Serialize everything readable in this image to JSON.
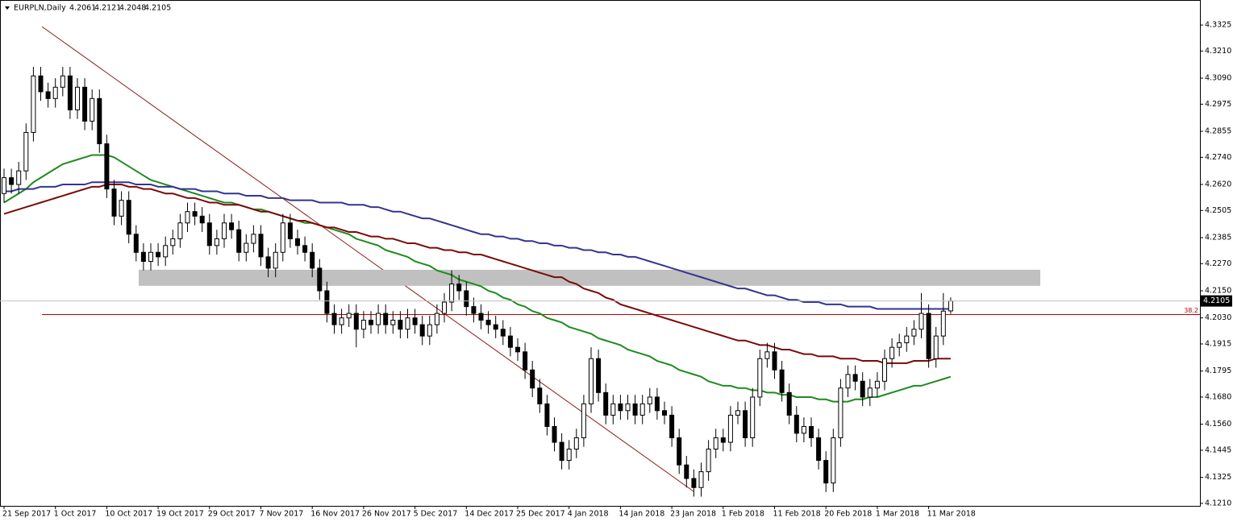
{
  "chart_data": {
    "type": "candlestick",
    "title": "EURPLN,Daily",
    "categories": [
      "21 Sep 2017",
      null,
      null,
      null,
      null,
      null,
      null,
      "1 Oct 2017",
      null,
      null,
      null,
      null,
      null,
      null,
      "10 Oct 2017",
      null,
      null,
      null,
      null,
      null,
      null,
      "19 Oct 2017",
      null,
      null,
      null,
      null,
      null,
      null,
      "29 Oct 2017",
      null,
      null,
      null,
      null,
      null,
      null,
      "7 Nov 2017",
      null,
      null,
      null,
      null,
      null,
      null,
      "16 Nov 2017",
      null,
      null,
      null,
      null,
      null,
      null,
      "26 Nov 2017",
      null,
      null,
      null,
      null,
      null,
      null,
      "5 Dec 2017",
      null,
      null,
      null,
      null,
      null,
      null,
      "14 Dec 2017",
      null,
      null,
      null,
      null,
      null,
      null,
      "25 Dec 2017",
      null,
      null,
      null,
      null,
      null,
      null,
      "4 Jan 2018",
      null,
      null,
      null,
      null,
      null,
      null,
      "14 Jan 2018",
      null,
      null,
      null,
      null,
      null,
      null,
      "23 Jan 2018",
      null,
      null,
      null,
      null,
      null,
      null,
      "1 Feb 2018",
      null,
      null,
      null,
      null,
      null,
      null,
      "11 Feb 2018",
      null,
      null,
      null,
      null,
      null,
      null,
      "20 Feb 2018",
      null,
      null,
      null,
      null,
      null,
      null,
      "1 Mar 2018",
      null,
      null,
      null,
      null,
      null,
      null,
      "11 Mar 2018",
      null,
      null,
      null
    ],
    "candles": [
      [
        4.258,
        4.269,
        4.254,
        4.265
      ],
      [
        4.265,
        4.269,
        4.258,
        4.262
      ],
      [
        4.262,
        4.272,
        4.258,
        4.268
      ],
      [
        4.268,
        4.289,
        4.264,
        4.285
      ],
      [
        4.285,
        4.314,
        4.281,
        4.31
      ],
      [
        4.31,
        4.314,
        4.299,
        4.303
      ],
      [
        4.303,
        4.307,
        4.296,
        4.3
      ],
      [
        4.3,
        4.309,
        4.296,
        4.305
      ],
      [
        4.305,
        4.314,
        4.301,
        4.31
      ],
      [
        4.31,
        4.314,
        4.291,
        4.295
      ],
      [
        4.295,
        4.309,
        4.291,
        4.305
      ],
      [
        4.305,
        4.309,
        4.286,
        4.29
      ],
      [
        4.29,
        4.304,
        4.286,
        4.3
      ],
      [
        4.3,
        4.304,
        4.276,
        4.28
      ],
      [
        4.28,
        4.284,
        4.256,
        4.26
      ],
      [
        4.26,
        4.264,
        4.244,
        4.248
      ],
      [
        4.248,
        4.259,
        4.244,
        4.255
      ],
      [
        4.255,
        4.259,
        4.236,
        4.24
      ],
      [
        4.24,
        4.244,
        4.228,
        4.232
      ],
      [
        4.232,
        4.236,
        4.224,
        4.228
      ],
      [
        4.228,
        4.236,
        4.224,
        4.232
      ],
      [
        4.232,
        4.236,
        4.226,
        4.23
      ],
      [
        4.23,
        4.239,
        4.226,
        4.235
      ],
      [
        4.235,
        4.242,
        4.231,
        4.238
      ],
      [
        4.238,
        4.249,
        4.234,
        4.245
      ],
      [
        4.245,
        4.254,
        4.241,
        4.25
      ],
      [
        4.25,
        4.254,
        4.244,
        4.248
      ],
      [
        4.248,
        4.252,
        4.241,
        4.245
      ],
      [
        4.245,
        4.249,
        4.231,
        4.235
      ],
      [
        4.235,
        4.242,
        4.231,
        4.238
      ],
      [
        4.238,
        4.249,
        4.234,
        4.245
      ],
      [
        4.245,
        4.249,
        4.238,
        4.242
      ],
      [
        4.242,
        4.246,
        4.228,
        4.232
      ],
      [
        4.232,
        4.24,
        4.228,
        4.236
      ],
      [
        4.236,
        4.244,
        4.232,
        4.24
      ],
      [
        4.24,
        4.244,
        4.226,
        4.23
      ],
      [
        4.23,
        4.234,
        4.221,
        4.225
      ],
      [
        4.225,
        4.236,
        4.221,
        4.232
      ],
      [
        4.232,
        4.249,
        4.228,
        4.245
      ],
      [
        4.245,
        4.249,
        4.234,
        4.238
      ],
      [
        4.238,
        4.242,
        4.231,
        4.235
      ],
      [
        4.235,
        4.239,
        4.228,
        4.232
      ],
      [
        4.232,
        4.236,
        4.221,
        4.225
      ],
      [
        4.225,
        4.229,
        4.211,
        4.215
      ],
      [
        4.215,
        4.219,
        4.201,
        4.205
      ],
      [
        4.205,
        4.209,
        4.196,
        4.2
      ],
      [
        4.2,
        4.207,
        4.196,
        4.203
      ],
      [
        4.203,
        4.209,
        4.199,
        4.205
      ],
      [
        4.205,
        4.209,
        4.19,
        4.198
      ],
      [
        4.198,
        4.206,
        4.194,
        4.202
      ],
      [
        4.202,
        4.206,
        4.196,
        4.2
      ],
      [
        4.2,
        4.209,
        4.196,
        4.205
      ],
      [
        4.205,
        4.209,
        4.196,
        4.2
      ],
      [
        4.2,
        4.206,
        4.196,
        4.202
      ],
      [
        4.202,
        4.206,
        4.194,
        4.198
      ],
      [
        4.198,
        4.207,
        4.194,
        4.203
      ],
      [
        4.203,
        4.207,
        4.196,
        4.2
      ],
      [
        4.2,
        4.204,
        4.191,
        4.195
      ],
      [
        4.195,
        4.204,
        4.191,
        4.2
      ],
      [
        4.2,
        4.209,
        4.196,
        4.205
      ],
      [
        4.205,
        4.214,
        4.201,
        4.21
      ],
      [
        4.21,
        4.224,
        4.206,
        4.218
      ],
      [
        4.218,
        4.222,
        4.211,
        4.215
      ],
      [
        4.215,
        4.219,
        4.204,
        4.208
      ],
      [
        4.208,
        4.212,
        4.201,
        4.205
      ],
      [
        4.205,
        4.209,
        4.198,
        4.202
      ],
      [
        4.202,
        4.206,
        4.196,
        4.2
      ],
      [
        4.2,
        4.204,
        4.194,
        4.198
      ],
      [
        4.198,
        4.202,
        4.191,
        4.195
      ],
      [
        4.195,
        4.199,
        4.186,
        4.19
      ],
      [
        4.19,
        4.194,
        4.184,
        4.188
      ],
      [
        4.188,
        4.192,
        4.176,
        4.18
      ],
      [
        4.18,
        4.184,
        4.168,
        4.172
      ],
      [
        4.172,
        4.176,
        4.161,
        4.165
      ],
      [
        4.165,
        4.169,
        4.151,
        4.155
      ],
      [
        4.155,
        4.159,
        4.144,
        4.148
      ],
      [
        4.148,
        4.152,
        4.136,
        4.14
      ],
      [
        4.14,
        4.149,
        4.136,
        4.145
      ],
      [
        4.145,
        4.154,
        4.141,
        4.15
      ],
      [
        4.15,
        4.169,
        4.146,
        4.165
      ],
      [
        4.165,
        4.19,
        4.161,
        4.185
      ],
      [
        4.185,
        4.189,
        4.166,
        4.17
      ],
      [
        4.17,
        4.174,
        4.156,
        4.16
      ],
      [
        4.16,
        4.169,
        4.156,
        4.165
      ],
      [
        4.165,
        4.169,
        4.158,
        4.162
      ],
      [
        4.162,
        4.169,
        4.158,
        4.165
      ],
      [
        4.165,
        4.169,
        4.156,
        4.16
      ],
      [
        4.16,
        4.169,
        4.156,
        4.165
      ],
      [
        4.165,
        4.172,
        4.161,
        4.168
      ],
      [
        4.168,
        4.172,
        4.158,
        4.162
      ],
      [
        4.162,
        4.166,
        4.156,
        4.16
      ],
      [
        4.16,
        4.164,
        4.146,
        4.15
      ],
      [
        4.15,
        4.154,
        4.134,
        4.138
      ],
      [
        4.138,
        4.142,
        4.128,
        4.132
      ],
      [
        4.132,
        4.136,
        4.124,
        4.128
      ],
      [
        4.128,
        4.139,
        4.124,
        4.135
      ],
      [
        4.135,
        4.149,
        4.131,
        4.145
      ],
      [
        4.145,
        4.154,
        4.141,
        4.15
      ],
      [
        4.15,
        4.154,
        4.144,
        4.148
      ],
      [
        4.148,
        4.164,
        4.144,
        4.16
      ],
      [
        4.16,
        4.166,
        4.156,
        4.162
      ],
      [
        4.162,
        4.166,
        4.146,
        4.15
      ],
      [
        4.15,
        4.172,
        4.146,
        4.168
      ],
      [
        4.168,
        4.189,
        4.164,
        4.185
      ],
      [
        4.185,
        4.192,
        4.181,
        4.188
      ],
      [
        4.188,
        4.192,
        4.176,
        4.18
      ],
      [
        4.18,
        4.184,
        4.166,
        4.17
      ],
      [
        4.17,
        4.174,
        4.156,
        4.16
      ],
      [
        4.16,
        4.164,
        4.148,
        4.152
      ],
      [
        4.152,
        4.159,
        4.148,
        4.155
      ],
      [
        4.155,
        4.159,
        4.146,
        4.15
      ],
      [
        4.15,
        4.154,
        4.136,
        4.14
      ],
      [
        4.14,
        4.144,
        4.126,
        4.13
      ],
      [
        4.13,
        4.154,
        4.126,
        4.15
      ],
      [
        4.15,
        4.176,
        4.146,
        4.172
      ],
      [
        4.172,
        4.182,
        4.168,
        4.178
      ],
      [
        4.178,
        4.182,
        4.171,
        4.175
      ],
      [
        4.175,
        4.179,
        4.164,
        4.168
      ],
      [
        4.168,
        4.176,
        4.164,
        4.172
      ],
      [
        4.172,
        4.179,
        4.168,
        4.175
      ],
      [
        4.175,
        4.189,
        4.171,
        4.185
      ],
      [
        4.185,
        4.194,
        4.181,
        4.19
      ],
      [
        4.19,
        4.196,
        4.186,
        4.192
      ],
      [
        4.192,
        4.199,
        4.188,
        4.195
      ],
      [
        4.195,
        4.202,
        4.191,
        4.198
      ],
      [
        4.198,
        4.214,
        4.194,
        4.205
      ],
      [
        4.205,
        4.209,
        4.181,
        4.185
      ],
      [
        4.185,
        4.199,
        4.181,
        4.195
      ],
      [
        4.195,
        4.214,
        4.191,
        4.206
      ],
      [
        4.2061,
        4.2121,
        4.2048,
        4.2105
      ]
    ],
    "ma_lines": [
      {
        "color": "#1f8a1f",
        "values": [
          4.254,
          4.256,
          4.258,
          4.26,
          4.263,
          4.265,
          4.267,
          4.269,
          4.271,
          4.272,
          4.273,
          4.274,
          4.275,
          4.275,
          4.275,
          4.274,
          4.272,
          4.27,
          4.268,
          4.266,
          4.264,
          4.263,
          4.262,
          4.261,
          4.26,
          4.259,
          4.258,
          4.257,
          4.256,
          4.255,
          4.254,
          4.254,
          4.253,
          4.252,
          4.251,
          4.251,
          4.25,
          4.249,
          4.248,
          4.247,
          4.246,
          4.245,
          4.245,
          4.244,
          4.243,
          4.242,
          4.241,
          4.24,
          4.238,
          4.237,
          4.236,
          4.235,
          4.233,
          4.232,
          4.231,
          4.23,
          4.228,
          4.227,
          4.226,
          4.224,
          4.223,
          4.222,
          4.22,
          4.219,
          4.218,
          4.217,
          4.215,
          4.214,
          4.212,
          4.211,
          4.209,
          4.208,
          4.206,
          4.205,
          4.203,
          4.202,
          4.201,
          4.199,
          4.198,
          4.197,
          4.196,
          4.194,
          4.193,
          4.192,
          4.191,
          4.189,
          4.188,
          4.187,
          4.186,
          4.184,
          4.183,
          4.182,
          4.18,
          4.179,
          4.178,
          4.177,
          4.175,
          4.174,
          4.173,
          4.173,
          4.172,
          4.172,
          4.171,
          4.171,
          4.17,
          4.17,
          4.169,
          4.169,
          4.168,
          4.168,
          4.168,
          4.167,
          4.167,
          4.166,
          4.166,
          4.166,
          4.167,
          4.167,
          4.168,
          4.168,
          4.169,
          4.17,
          4.171,
          4.172,
          4.173,
          4.173,
          4.174,
          4.175,
          4.176,
          4.177
        ]
      },
      {
        "color": "#7a0a0a",
        "values": [
          4.249,
          4.25,
          4.251,
          4.252,
          4.253,
          4.254,
          4.255,
          4.256,
          4.257,
          4.258,
          4.259,
          4.26,
          4.261,
          4.261,
          4.262,
          4.262,
          4.262,
          4.261,
          4.261,
          4.26,
          4.26,
          4.259,
          4.258,
          4.258,
          4.257,
          4.256,
          4.256,
          4.255,
          4.254,
          4.254,
          4.253,
          4.253,
          4.253,
          4.252,
          4.251,
          4.25,
          4.25,
          4.249,
          4.248,
          4.247,
          4.246,
          4.246,
          4.245,
          4.244,
          4.243,
          4.243,
          4.242,
          4.241,
          4.241,
          4.24,
          4.239,
          4.239,
          4.238,
          4.238,
          4.237,
          4.236,
          4.236,
          4.235,
          4.234,
          4.234,
          4.233,
          4.233,
          4.232,
          4.232,
          4.231,
          4.231,
          4.23,
          4.229,
          4.228,
          4.227,
          4.226,
          4.225,
          4.224,
          4.223,
          4.222,
          4.221,
          4.221,
          4.219,
          4.218,
          4.216,
          4.215,
          4.214,
          4.212,
          4.211,
          4.209,
          4.208,
          4.207,
          4.206,
          4.205,
          4.204,
          4.203,
          4.202,
          4.201,
          4.2,
          4.199,
          4.198,
          4.197,
          4.196,
          4.195,
          4.194,
          4.193,
          4.193,
          4.192,
          4.191,
          4.191,
          4.19,
          4.189,
          4.189,
          4.188,
          4.187,
          4.187,
          4.186,
          4.186,
          4.186,
          4.185,
          4.185,
          4.185,
          4.184,
          4.184,
          4.184,
          4.183,
          4.183,
          4.183,
          4.183,
          4.184,
          4.184,
          4.184,
          4.185,
          4.185,
          4.185
        ]
      },
      {
        "color": "#34348f",
        "values": [
          4.259,
          4.259,
          4.26,
          4.26,
          4.26,
          4.261,
          4.261,
          4.261,
          4.262,
          4.262,
          4.262,
          4.262,
          4.263,
          4.263,
          4.263,
          4.263,
          4.263,
          4.263,
          4.262,
          4.262,
          4.262,
          4.261,
          4.261,
          4.261,
          4.26,
          4.26,
          4.26,
          4.259,
          4.259,
          4.259,
          4.258,
          4.258,
          4.258,
          4.257,
          4.257,
          4.257,
          4.256,
          4.256,
          4.256,
          4.255,
          4.255,
          4.255,
          4.255,
          4.254,
          4.254,
          4.254,
          4.254,
          4.253,
          4.253,
          4.253,
          4.252,
          4.252,
          4.251,
          4.25,
          4.25,
          4.249,
          4.248,
          4.247,
          4.247,
          4.246,
          4.245,
          4.244,
          4.243,
          4.242,
          4.241,
          4.24,
          4.24,
          4.239,
          4.239,
          4.238,
          4.238,
          4.237,
          4.237,
          4.236,
          4.236,
          4.235,
          4.235,
          4.234,
          4.234,
          4.233,
          4.233,
          4.232,
          4.232,
          4.231,
          4.231,
          4.23,
          4.23,
          4.229,
          4.228,
          4.227,
          4.226,
          4.225,
          4.224,
          4.223,
          4.222,
          4.221,
          4.22,
          4.219,
          4.218,
          4.217,
          4.216,
          4.216,
          4.215,
          4.214,
          4.213,
          4.213,
          4.212,
          4.211,
          4.211,
          4.21,
          4.21,
          4.21,
          4.209,
          4.209,
          4.209,
          4.208,
          4.208,
          4.208,
          4.208,
          4.207,
          4.207,
          4.207,
          4.207,
          4.207,
          4.207,
          4.207,
          4.207,
          4.207,
          4.207,
          4.207
        ]
      }
    ],
    "zone": [
      4.2172,
      4.2243
    ],
    "fib": {
      "level": 38.2,
      "price": 4.2045
    },
    "ylim": [
      4.1199,
      4.3425
    ],
    "yticks": [
      {
        "value": 4.121,
        "label": "4.1210"
      },
      4.1325,
      4.1445,
      {
        "value": 4.156,
        "label": "4.1560"
      },
      {
        "value": 4.168,
        "label": "4.1680"
      },
      4.1795,
      4.1915,
      {
        "value": 4.203,
        "label": "4.2030"
      },
      {
        "value": 4.215,
        "label": "4.2150"
      },
      {
        "value": 4.227,
        "label": "4.2270"
      },
      4.2385,
      4.2505,
      {
        "value": 4.262,
        "label": "4.2620"
      },
      {
        "value": 4.274,
        "label": "4.2740"
      },
      4.2855,
      4.2975,
      {
        "value": 4.309,
        "label": "4.3090"
      },
      {
        "value": 4.321,
        "label": "4.3210"
      },
      4.3325
    ],
    "bull_color": "#ffffff",
    "bear_color": "#000000"
  }
}
